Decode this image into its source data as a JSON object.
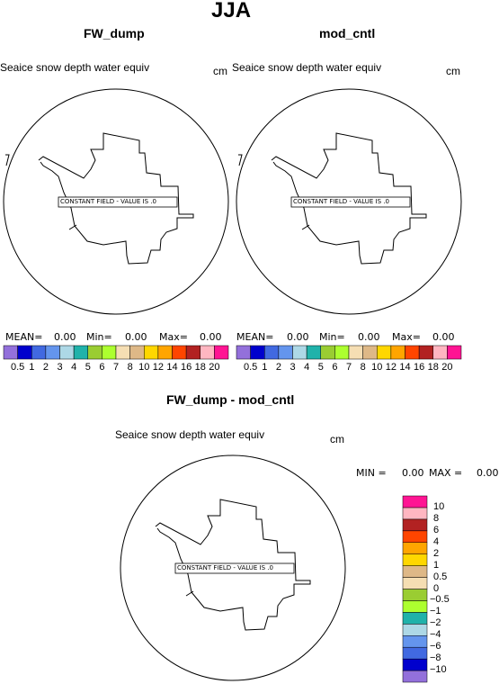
{
  "page_title": "JJA",
  "panels": [
    {
      "title": "FW_dump",
      "variable": "Seaice snow depth water equiv",
      "units": "cm",
      "map_message": "CONSTANT FIELD - VALUE IS .0",
      "stats": {
        "mean_label": "MEAN=",
        "mean": "0.00",
        "min_label": "Min=",
        "min": "0.00",
        "max_label": "Max=",
        "max": "0.00"
      }
    },
    {
      "title": "mod_cntl",
      "variable": "Seaice snow depth water equiv",
      "units": "cm",
      "map_message": "CONSTANT FIELD - VALUE IS .0",
      "stats": {
        "mean_label": "MEAN=",
        "mean": "0.00",
        "min_label": "Min=",
        "min": "0.00",
        "max_label": "Max=",
        "max": "0.00"
      }
    },
    {
      "title": "FW_dump - mod_cntl",
      "variable": "Seaice snow depth water equiv",
      "units": "cm",
      "map_message": "CONSTANT FIELD - VALUE IS .0",
      "stats": {
        "min_label": "MIN =",
        "min": "0.00",
        "max_label": "MAX =",
        "max": "0.00"
      }
    }
  ],
  "colorbar_top": {
    "colors": [
      "#9370db",
      "#0000cd",
      "#4169e1",
      "#6495ed",
      "#add8e6",
      "#20b2aa",
      "#9acd32",
      "#adff2f",
      "#f5deb3",
      "#deb887",
      "#ffd700",
      "#ffa500",
      "#ff4500",
      "#b22222",
      "#ffb6c1",
      "#ff1493"
    ],
    "labels": [
      "0.5",
      "1",
      "2",
      "3",
      "4",
      "5",
      "6",
      "7",
      "8",
      "10",
      "12",
      "14",
      "16",
      "18",
      "20"
    ]
  },
  "colorbar_diff": {
    "colors": [
      "#9370db",
      "#0000cd",
      "#4169e1",
      "#6495ed",
      "#add8e6",
      "#20b2aa",
      "#adff2f",
      "#9acd32",
      "#f5deb3",
      "#deb887",
      "#ffd700",
      "#ffa500",
      "#ff4500",
      "#b22222",
      "#ffb6c1",
      "#ff1493"
    ],
    "labels": [
      "10",
      "8",
      "6",
      "4",
      "2",
      "1",
      "0.5",
      "0",
      "−0.5",
      "−1",
      "−2",
      "−4",
      "−6",
      "−8",
      "−10"
    ]
  }
}
